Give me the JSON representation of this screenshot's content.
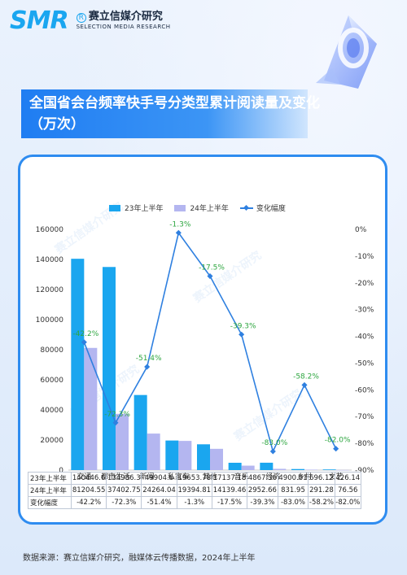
{
  "brand": {
    "logo": "SMR",
    "registered": "R",
    "name_cn": "赛立信媒介研究",
    "name_en": "SELECTION MEDIA RESEARCH"
  },
  "title": "全国省会台频率快手号分类型累计阅读量及变化（万次）",
  "chart_data": {
    "type": "bar",
    "categories": [
      "交通",
      "都市生活",
      "新闻",
      "私家车",
      "其他",
      "音乐",
      "经济",
      "乡村",
      "文艺"
    ],
    "series": [
      {
        "name": "23年上半年",
        "values": [
          140446.6,
          134986.3,
          49904.6,
          19653.78,
          17137.18,
          4867.36,
          4900.81,
          696.12,
          426.14
        ],
        "color": "#1aa6ef"
      },
      {
        "name": "24年上半年",
        "values": [
          81204.55,
          37402.75,
          24264.04,
          19394.81,
          14139.46,
          2952.66,
          831.95,
          291.28,
          76.56
        ],
        "color": "#b4b6f0"
      },
      {
        "name": "变化幅度",
        "type": "line",
        "axis": "right",
        "values": [
          -42.2,
          -72.3,
          -51.4,
          -1.3,
          -17.5,
          -39.3,
          -83.0,
          -58.2,
          -82.0
        ],
        "color": "#2f80e0"
      }
    ],
    "line_labels": [
      "-42.2%",
      "-72.3%",
      "-51.4%",
      "-1.3%",
      "-17.5%",
      "-39.3%",
      "-83.0%",
      "-58.2%",
      "-82.0%"
    ],
    "ylim": [
      0,
      160000
    ],
    "y_ticks": [
      "0",
      "20000",
      "40000",
      "60000",
      "80000",
      "100000",
      "120000",
      "140000",
      "160000"
    ],
    "y2lim": [
      -90,
      0
    ],
    "y2_ticks": [
      "-90%",
      "-80%",
      "-70%",
      "-60%",
      "-50%",
      "-40%",
      "-30%",
      "-20%",
      "-10%",
      "0%"
    ],
    "legend_position": "top",
    "table": {
      "rows": [
        {
          "label": "23年上半年",
          "cells": [
            "140446.6",
            "134986.3",
            "49904.6",
            "19653.78",
            "17137.18",
            "4867.36",
            "4900.81",
            "696.12",
            "426.14"
          ]
        },
        {
          "label": "24年上半年",
          "cells": [
            "81204.55",
            "37402.75",
            "24264.04",
            "19394.81",
            "14139.46",
            "2952.66",
            "831.95",
            "291.28",
            "76.56"
          ]
        },
        {
          "label": "变化幅度",
          "cells": [
            "-42.2%",
            "-72.3%",
            "-51.4%",
            "-1.3%",
            "-17.5%",
            "-39.3%",
            "-83.0%",
            "-58.2%",
            "-82.0%"
          ]
        }
      ]
    }
  },
  "watermark_text": "赛立信媒介研究",
  "source": "数据来源：赛立信媒介研究，融媒体云传播数据，2024年上半年"
}
